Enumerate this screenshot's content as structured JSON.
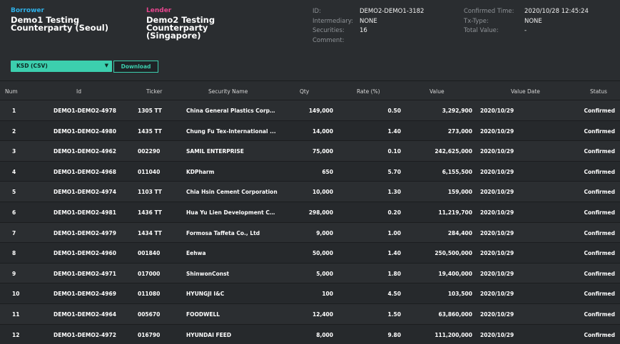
{
  "borrower": {
    "role": "Borrower",
    "name": "Demo1 Testing\nCounterparty (Seoul)"
  },
  "lender": {
    "role": "Lender",
    "name": "Demo2 Testing\nCounterparty\n(Singapore)"
  },
  "info": {
    "id_label": "ID:",
    "id_value": "DEMO2-DEMO1-3182",
    "intermediary_label": "Intermediary:",
    "intermediary_value": "NONE",
    "securities_label": "Securities:",
    "securities_value": "16",
    "comment_label": "Comment:",
    "confirmed_time_label": "Confirmed Time:",
    "confirmed_time_value": "2020/10/28 12:45:24",
    "tx_type_label": "Tx-Type:",
    "tx_type_value": "NONE",
    "total_value_label": "Total Value:",
    "total_value_value": "-"
  },
  "export": {
    "format_selected": "KSD (CSV)",
    "download_label": "Download"
  },
  "table": {
    "headers": [
      "Num",
      "Id",
      "Ticker",
      "Security Name",
      "Qty",
      "Rate (%)",
      "Value",
      "Value Date",
      "Status"
    ],
    "rows": [
      [
        "1",
        "DEMO1-DEMO2-4978",
        "1305 TT",
        "China General Plastics Corpo...",
        "149,000",
        "0.50",
        "3,292,900",
        "2020/10/29",
        "Confirmed"
      ],
      [
        "2",
        "DEMO1-DEMO2-4980",
        "1435 TT",
        "Chung Fu Tex-International ...",
        "14,000",
        "1.40",
        "273,000",
        "2020/10/29",
        "Confirmed"
      ],
      [
        "3",
        "DEMO1-DEMO2-4962",
        "002290",
        "SAMIL ENTERPRISE",
        "75,000",
        "0.10",
        "242,625,000",
        "2020/10/29",
        "Confirmed"
      ],
      [
        "4",
        "DEMO1-DEMO2-4968",
        "011040",
        "KDPharm",
        "650",
        "5.70",
        "6,155,500",
        "2020/10/29",
        "Confirmed"
      ],
      [
        "5",
        "DEMO1-DEMO2-4974",
        "1103 TT",
        "Chia Hsin Cement Corporation",
        "10,000",
        "1.30",
        "159,000",
        "2020/10/29",
        "Confirmed"
      ],
      [
        "6",
        "DEMO1-DEMO2-4981",
        "1436 TT",
        "Hua Yu Lien Development Co...",
        "298,000",
        "0.20",
        "11,219,700",
        "2020/10/29",
        "Confirmed"
      ],
      [
        "7",
        "DEMO1-DEMO2-4979",
        "1434 TT",
        "Formosa Taffeta Co., Ltd",
        "9,000",
        "1.00",
        "284,400",
        "2020/10/29",
        "Confirmed"
      ],
      [
        "8",
        "DEMO1-DEMO2-4960",
        "001840",
        "Eehwa",
        "50,000",
        "1.40",
        "250,500,000",
        "2020/10/29",
        "Confirmed"
      ],
      [
        "9",
        "DEMO1-DEMO2-4971",
        "017000",
        "ShinwonConst",
        "5,000",
        "1.80",
        "19,400,000",
        "2020/10/29",
        "Confirmed"
      ],
      [
        "10",
        "DEMO1-DEMO2-4969",
        "011080",
        "HYUNGJI I&C",
        "100",
        "4.50",
        "103,500",
        "2020/10/29",
        "Confirmed"
      ],
      [
        "11",
        "DEMO1-DEMO2-4964",
        "005670",
        "FOODWELL",
        "12,400",
        "1.50",
        "63,860,000",
        "2020/10/29",
        "Confirmed"
      ],
      [
        "12",
        "DEMO1-DEMO2-4972",
        "016790",
        "HYUNDAI FEED",
        "8,000",
        "9.80",
        "111,200,000",
        "2020/10/29",
        "Confirmed"
      ]
    ]
  },
  "colors": {
    "borrower": "#2fb2ea",
    "lender": "#e8468f",
    "accent": "#3ccfae"
  }
}
